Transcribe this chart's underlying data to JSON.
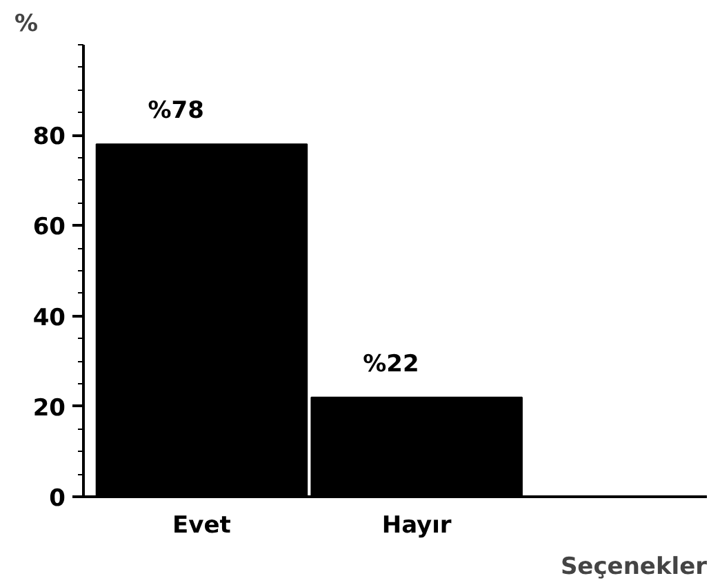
{
  "chart_data": {
    "type": "bar",
    "xlabel": "Seçenekler",
    "ylabel": "%",
    "categories": [
      "Evet",
      "Hayır"
    ],
    "values": [
      78,
      22
    ],
    "color": "#000000",
    "value_labels": [
      "%78",
      "%22"
    ],
    "ylim": [
      0,
      100
    ],
    "yticks": [
      0,
      20,
      40,
      60,
      80
    ],
    "grid": false
  }
}
